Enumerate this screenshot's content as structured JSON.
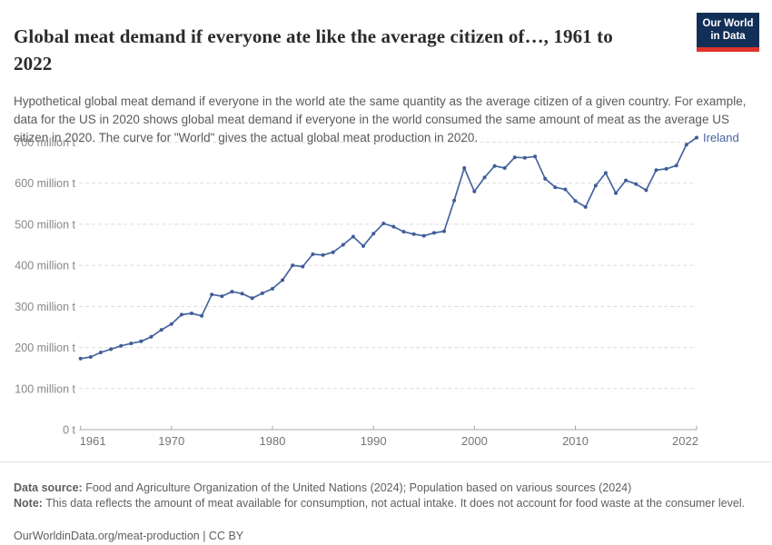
{
  "header": {
    "title": "Global meat demand if everyone ate like the average citizen of…, 1961 to 2022",
    "logo": {
      "line1": "Our World",
      "line2": "in Data"
    }
  },
  "subtitle": "Hypothetical global meat demand if everyone in the world ate the same quantity as the average citizen of a given country. For example, data for the US in 2020 shows global meat demand if everyone in the world consumed the same amount of meat as the average US citizen in 2020. The curve for \"World\" gives the actual global meat production in 2020.",
  "chart_data": {
    "type": "line",
    "title": "Global meat demand if everyone ate like the average citizen of…, 1961 to 2022",
    "x_range": [
      1961,
      2022
    ],
    "ylim": [
      0,
      720
    ],
    "grid": true,
    "legend_position": "end-of-line",
    "y_unit_suffix": " million t",
    "y_zero_label": "0 t",
    "yticks": [
      0,
      100,
      200,
      300,
      400,
      500,
      600,
      700
    ],
    "xticks": [
      1961,
      1970,
      1980,
      1990,
      2000,
      2010,
      2022
    ],
    "years": [
      1961,
      1962,
      1963,
      1964,
      1965,
      1966,
      1967,
      1968,
      1969,
      1970,
      1971,
      1972,
      1973,
      1974,
      1975,
      1976,
      1977,
      1978,
      1979,
      1980,
      1981,
      1982,
      1983,
      1984,
      1985,
      1986,
      1987,
      1988,
      1989,
      1990,
      1991,
      1992,
      1993,
      1994,
      1995,
      1996,
      1997,
      1998,
      1999,
      2000,
      2001,
      2002,
      2003,
      2004,
      2005,
      2006,
      2007,
      2008,
      2009,
      2010,
      2011,
      2012,
      2013,
      2014,
      2015,
      2016,
      2017,
      2018,
      2019,
      2020,
      2021,
      2022
    ],
    "series": [
      {
        "name": "Ireland",
        "color": "#4665a0",
        "marker_color": "#3f5c97",
        "values": [
          173,
          177,
          188,
          196,
          204,
          210,
          215,
          226,
          243,
          257,
          280,
          283,
          277,
          329,
          325,
          336,
          331,
          320,
          332,
          343,
          364,
          400,
          397,
          427,
          425,
          432,
          450,
          470,
          447,
          477,
          502,
          494,
          482,
          476,
          472,
          479,
          483,
          558,
          637,
          580,
          614,
          642,
          637,
          663,
          662,
          665,
          611,
          590,
          585,
          557,
          542,
          594,
          625,
          576,
          607,
          598,
          583,
          632,
          635,
          643,
          694,
          711
        ]
      }
    ]
  },
  "footer": {
    "datasource_label": "Data source:",
    "datasource_text": " Food and Agriculture Organization of the United Nations (2024); Population based on various sources (2024)",
    "note_label": "Note:",
    "note_text": " This data reflects the amount of meat available for consumption, not actual intake. It does not account for food waste at the consumer level.",
    "citation": "OurWorldinData.org/meat-production | CC BY"
  },
  "colors": {
    "accent_line": "#4665a0",
    "logo_background": "#122f57",
    "logo_accent": "#e0342a",
    "gridline": "#dcdcdc",
    "axis": "#a9a9a9"
  }
}
